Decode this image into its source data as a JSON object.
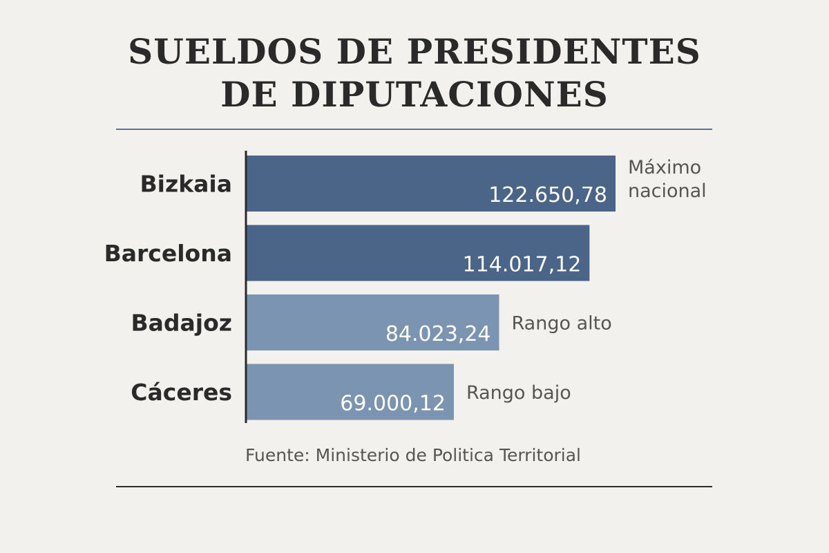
{
  "chart_data": {
    "type": "bar",
    "orientation": "horizontal",
    "title_lines": [
      "SUELDOS DE PRESIDENTES",
      "DE DIPUTACIONES"
    ],
    "categories": [
      "Bizkaia",
      "Barcelona",
      "Badajoz",
      "Cáceres"
    ],
    "values": [
      122650.78,
      114017.12,
      84023.24,
      69000.12
    ],
    "value_labels": [
      "122.650,78",
      "114.017,12",
      "84.023,24",
      "69.000,12"
    ],
    "annotations": [
      [
        "Máximo",
        "nacional"
      ],
      [],
      [
        "Rango alto"
      ],
      [
        "Rango bajo"
      ]
    ],
    "bar_colors": [
      "#4a6587",
      "#4a6587",
      "#7b94b2",
      "#7b94b2"
    ],
    "value_label_color": "#ffffff",
    "source": "Fuente: Ministerio de Politica Territorial",
    "grid": false,
    "legend": "none"
  }
}
